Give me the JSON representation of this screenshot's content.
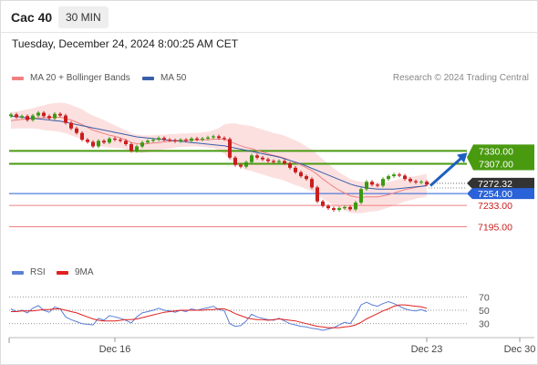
{
  "header": {
    "instrument": "Cac 40",
    "timeframe": "30 MIN",
    "datetime": "Tuesday, December 24, 2024 8:00:25 AM CET"
  },
  "legend": {
    "ma20_label": "MA 20 + Bollinger Bands",
    "ma20_color": "#f08080",
    "ma50_label": "MA 50",
    "ma50_color": "#3a5fa8",
    "rsi_label": "RSI",
    "rsi_color": "#5b7fd6",
    "rsi_ma_label": "9MA",
    "rsi_ma_color": "#e02020"
  },
  "watermark": "Research © 2024 Trading Central",
  "chart_data": {
    "type": "candlestick",
    "ylim": [
      7160,
      7420
    ],
    "levels": [
      {
        "value": 7330.0,
        "label": "7330.00",
        "kind": "resistance",
        "color": "#4a9a10"
      },
      {
        "value": 7307.0,
        "label": "7307.00",
        "kind": "resistance",
        "color": "#4a9a10"
      },
      {
        "value": 7254.0,
        "label": "7254.00",
        "kind": "pivot",
        "color": "#2a62d8"
      },
      {
        "value": 7233.0,
        "label": "7233.00",
        "kind": "support",
        "color": "#f08080"
      },
      {
        "value": 7195.0,
        "label": "7195.00",
        "kind": "support",
        "color": "#f08080"
      }
    ],
    "last_price": {
      "value": 7272.32,
      "label": "7272.32"
    },
    "close": [
      7395,
      7390,
      7392,
      7385,
      7393,
      7398,
      7392,
      7388,
      7396,
      7393,
      7380,
      7370,
      7362,
      7350,
      7346,
      7338,
      7348,
      7345,
      7352,
      7350,
      7348,
      7342,
      7330,
      7338,
      7345,
      7348,
      7350,
      7353,
      7350,
      7349,
      7347,
      7350,
      7348,
      7352,
      7350,
      7352,
      7354,
      7356,
      7353,
      7351,
      7318,
      7305,
      7302,
      7310,
      7322,
      7318,
      7315,
      7312,
      7310,
      7312,
      7308,
      7300,
      7292,
      7285,
      7280,
      7265,
      7240,
      7232,
      7228,
      7225,
      7228,
      7230,
      7226,
      7238,
      7262,
      7275,
      7270,
      7268,
      7280,
      7285,
      7288,
      7286,
      7280,
      7276,
      7274,
      7275,
      7270
    ],
    "ma20": [
      7384,
      7385,
      7386,
      7387,
      7388,
      7389,
      7389,
      7390,
      7390,
      7390,
      7388,
      7385,
      7381,
      7377,
      7372,
      7367,
      7364,
      7361,
      7358,
      7356,
      7353,
      7350,
      7345,
      7343,
      7342,
      7343,
      7344,
      7345,
      7346,
      7347,
      7348,
      7349,
      7349,
      7350,
      7350,
      7350,
      7350,
      7351,
      7351,
      7351,
      7347,
      7343,
      7339,
      7336,
      7334,
      7331,
      7328,
      7325,
      7322,
      7320,
      7317,
      7313,
      7309,
      7305,
      7300,
      7295,
      7288,
      7280,
      7273,
      7266,
      7260,
      7255,
      7250,
      7248,
      7247,
      7248,
      7248,
      7248,
      7250,
      7252,
      7255,
      7258,
      7261,
      7263,
      7265,
      7267,
      7269
    ],
    "ma50": [
      7392,
      7391,
      7390,
      7389,
      7388,
      7387,
      7386,
      7385,
      7384,
      7383,
      7381,
      7379,
      7377,
      7375,
      7373,
      7371,
      7369,
      7367,
      7365,
      7363,
      7361,
      7359,
      7357,
      7355,
      7354,
      7353,
      7352,
      7351,
      7350,
      7349,
      7348,
      7347,
      7346,
      7345,
      7344,
      7343,
      7342,
      7341,
      7340,
      7339,
      7337,
      7335,
      7333,
      7331,
      7329,
      7327,
      7325,
      7323,
      7321,
      7319,
      7316,
      7313,
      7310,
      7307,
      7303,
      7299,
      7295,
      7291,
      7287,
      7283,
      7279,
      7275,
      7271,
      7268,
      7266,
      7264,
      7263,
      7262,
      7262,
      7262,
      7262,
      7263,
      7264,
      7265,
      7266,
      7267,
      7268
    ],
    "bb_width": [
      15,
      15,
      16,
      17,
      18,
      20,
      22,
      24,
      25,
      26,
      27,
      27,
      27,
      27,
      26,
      26,
      25,
      24,
      22,
      20,
      18,
      17,
      16,
      16,
      16,
      15,
      14,
      14,
      13,
      13,
      12,
      12,
      12,
      12,
      12,
      13,
      14,
      16,
      20,
      26,
      32,
      36,
      38,
      40,
      40,
      40,
      40,
      40,
      40,
      40,
      40,
      40,
      40,
      39,
      38,
      37,
      36,
      35,
      34,
      33,
      32,
      31,
      30,
      29,
      28,
      27,
      26,
      25,
      24,
      23,
      22,
      22,
      21,
      21,
      20,
      20,
      20
    ],
    "forecast": {
      "from": 7268,
      "to": 7330
    },
    "rsi": {
      "ylim": [
        20,
        80
      ],
      "ticks": [
        70,
        50,
        30
      ],
      "values": [
        52,
        48,
        50,
        46,
        53,
        57,
        50,
        47,
        55,
        52,
        40,
        36,
        33,
        30,
        29,
        28,
        38,
        35,
        42,
        40,
        38,
        35,
        31,
        40,
        46,
        48,
        50,
        53,
        50,
        49,
        47,
        50,
        48,
        52,
        50,
        52,
        54,
        56,
        51,
        49,
        30,
        26,
        27,
        34,
        44,
        40,
        38,
        36,
        35,
        38,
        34,
        30,
        28,
        26,
        25,
        23,
        22,
        20,
        22,
        24,
        28,
        32,
        30,
        42,
        58,
        62,
        58,
        56,
        60,
        63,
        60,
        56,
        52,
        50,
        49,
        51,
        48
      ],
      "ma": [
        48,
        48,
        49,
        49,
        49,
        50,
        51,
        51,
        52,
        52,
        50,
        48,
        46,
        43,
        40,
        37,
        35,
        34,
        34,
        34,
        35,
        36,
        36,
        37,
        39,
        41,
        43,
        45,
        47,
        48,
        49,
        50,
        50,
        50,
        50,
        50,
        51,
        51,
        52,
        52,
        49,
        45,
        42,
        39,
        37,
        36,
        36,
        35,
        36,
        37,
        36,
        35,
        34,
        32,
        30,
        28,
        26,
        25,
        24,
        24,
        24,
        25,
        26,
        28,
        32,
        37,
        41,
        45,
        49,
        52,
        56,
        58,
        58,
        57,
        56,
        55,
        53
      ]
    },
    "x_ticks": [
      {
        "index": 20,
        "label": "Dec 16"
      },
      {
        "index": 77,
        "label": "Dec 23"
      },
      {
        "index": 94,
        "label": "Dec 30"
      }
    ]
  }
}
